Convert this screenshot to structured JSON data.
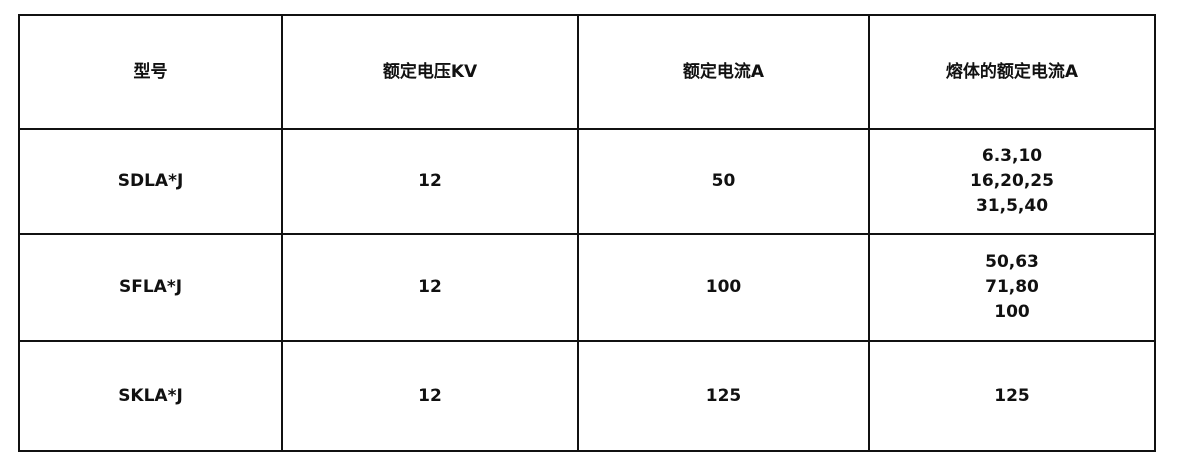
{
  "table": {
    "headers": [
      "型号",
      "额定电压KV",
      "额定电流A",
      "熔体的额定电流A"
    ],
    "rows": [
      {
        "model": "SDLA*J",
        "voltage": "12",
        "current": "50",
        "fuse": [
          "6.3,10",
          "16,20,25",
          "31,5,40"
        ]
      },
      {
        "model": "SFLA*J",
        "voltage": "12",
        "current": "100",
        "fuse": [
          "50,63",
          "71,80",
          "100"
        ]
      },
      {
        "model": "SKLA*J",
        "voltage": "12",
        "current": "125",
        "fuse": [
          "125"
        ]
      }
    ]
  }
}
